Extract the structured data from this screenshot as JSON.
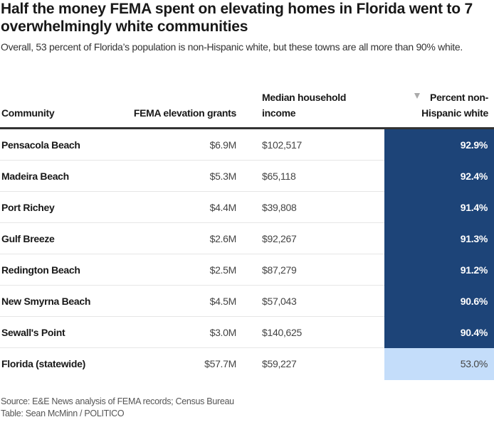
{
  "header": {
    "title": "Half the money FEMA spent on elevating homes in Florida went to 7 overwhelmingly white communities",
    "subtitle": "Overall, 53 percent of Florida’s population is non-Hispanic white, but these towns are all more than 90% white."
  },
  "table": {
    "columns": {
      "community": "Community",
      "grants": "FEMA elevation grants",
      "income": "Median household income",
      "pct": "Percent non-Hispanic white"
    },
    "sort": {
      "column": "pct",
      "direction": "descending",
      "icon": "sort-down-icon"
    },
    "rows": [
      {
        "community": "Pensacola Beach",
        "grants": "$6.9M",
        "income": "$102,517",
        "pct": "92.9%",
        "pct_value": 92.9
      },
      {
        "community": "Madeira Beach",
        "grants": "$5.3M",
        "income": "$65,118",
        "pct": "92.4%",
        "pct_value": 92.4
      },
      {
        "community": "Port Richey",
        "grants": "$4.4M",
        "income": "$39,808",
        "pct": "91.4%",
        "pct_value": 91.4
      },
      {
        "community": "Gulf Breeze",
        "grants": "$2.6M",
        "income": "$92,267",
        "pct": "91.3%",
        "pct_value": 91.3
      },
      {
        "community": "Redington Beach",
        "grants": "$2.5M",
        "income": "$87,279",
        "pct": "91.2%",
        "pct_value": 91.2
      },
      {
        "community": "New Smyrna Beach",
        "grants": "$4.5M",
        "income": "$57,043",
        "pct": "90.6%",
        "pct_value": 90.6
      },
      {
        "community": "Sewall's Point",
        "grants": "$3.0M",
        "income": "$140,625",
        "pct": "90.4%",
        "pct_value": 90.4
      },
      {
        "community": "Florida (statewide)",
        "grants": "$57.7M",
        "income": "$59,227",
        "pct": "53.0%",
        "pct_value": 53.0
      }
    ],
    "heat_colors": {
      "high": "#1d4478",
      "low": "#c4ddfa",
      "high_text": "#ffffff",
      "low_text": "#444444"
    }
  },
  "footer": {
    "source": "Source: E&E News analysis of FEMA records; Census Bureau",
    "credit": "Table: Sean McMinn / POLITICO"
  },
  "chart_data": {
    "type": "table",
    "title": "Half the money FEMA spent on elevating homes in Florida went to 7 overwhelmingly white communities",
    "subtitle": "Overall, 53 percent of Florida’s population is non-Hispanic white, but these towns are all more than 90% white.",
    "columns": [
      "Community",
      "FEMA elevation grants",
      "Median household income",
      "Percent non-Hispanic white"
    ],
    "rows": [
      [
        "Pensacola Beach",
        "$6.9M",
        "$102,517",
        "92.9%"
      ],
      [
        "Madeira Beach",
        "$5.3M",
        "$65,118",
        "92.4%"
      ],
      [
        "Port Richey",
        "$4.4M",
        "$39,808",
        "91.4%"
      ],
      [
        "Gulf Breeze",
        "$2.6M",
        "$92,267",
        "91.3%"
      ],
      [
        "Redington Beach",
        "$2.5M",
        "$87,279",
        "91.2%"
      ],
      [
        "New Smyrna Beach",
        "$4.5M",
        "$57,043",
        "90.6%"
      ],
      [
        "Sewall's Point",
        "$3.0M",
        "$140,625",
        "90.4%"
      ],
      [
        "Florida (statewide)",
        "$57.7M",
        "$59,227",
        "53.0%"
      ]
    ],
    "sorted_by": "Percent non-Hispanic white (descending)",
    "heatmap_column": "Percent non-Hispanic white"
  }
}
